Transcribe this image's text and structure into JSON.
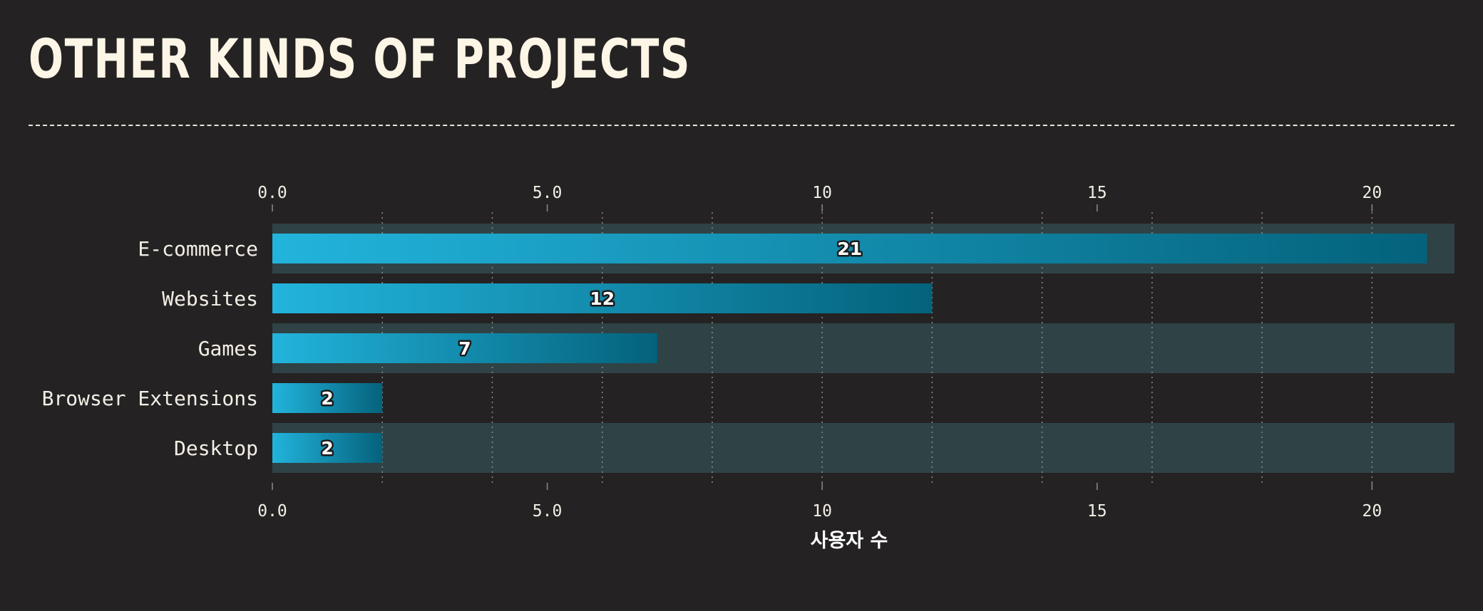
{
  "title": "OTHER KINDS OF PROJECTS",
  "chart_data": {
    "type": "bar",
    "orientation": "horizontal",
    "categories": [
      "E-commerce",
      "Websites",
      "Games",
      "Browser Extensions",
      "Desktop"
    ],
    "values": [
      21,
      12,
      7,
      2,
      2
    ],
    "xlabel": "사용자 수",
    "ylabel": "",
    "xlim": [
      0,
      21.5
    ],
    "x_ticks": [
      0,
      5,
      10,
      15,
      20
    ],
    "x_tick_labels": [
      "0.0",
      "5.0",
      "10",
      "15",
      "20"
    ],
    "minor_gridline_step": 2,
    "axis_position": "top-and-bottom",
    "grid": true,
    "data_labels": true,
    "colors": {
      "bar_start": "#22b4dc",
      "bar_end": "#04627c",
      "band": "#2f4346",
      "grid": "#8c8c8c",
      "background": "#252223",
      "text": "#f3efe6",
      "title": "#fdf6e6"
    }
  }
}
